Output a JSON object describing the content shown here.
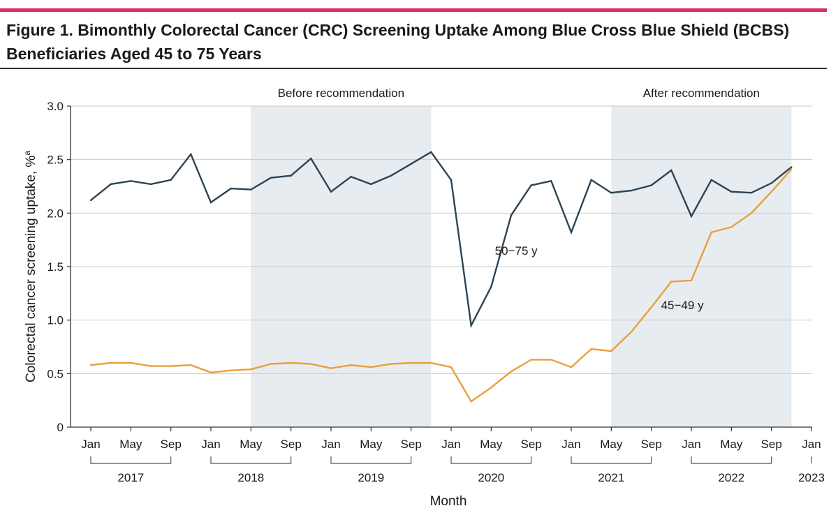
{
  "figure": {
    "title_line1": "Figure 1. Bimonthly Colorectal Cancer (CRC) Screening Uptake Among Blue Cross Blue Shield (BCBS)",
    "title_line2": "Beneficiaries Aged 45 to 75 Years"
  },
  "colors": {
    "accent": "#d6306b",
    "series_50_75": "#2e4453",
    "series_45_49": "#e8a03c",
    "shade": "#e7ecf1"
  },
  "chart_data": {
    "type": "line",
    "title": "Figure 1. Bimonthly Colorectal Cancer (CRC) Screening Uptake Among Blue Cross Blue Shield (BCBS) Beneficiaries Aged 45 to 75 Years",
    "xlabel": "Month",
    "ylabel": "Colorectal cancer screening uptake, %",
    "ylabel_superscript": "a",
    "ylim": [
      0,
      3.0
    ],
    "yticks": [
      "0",
      "0.5",
      "1.0",
      "1.5",
      "2.0",
      "2.5",
      "3.0"
    ],
    "xlim": [
      0,
      72
    ],
    "xticks": [
      {
        "t": 0,
        "label": "Jan"
      },
      {
        "t": 4,
        "label": "May"
      },
      {
        "t": 8,
        "label": "Sep"
      },
      {
        "t": 12,
        "label": "Jan"
      },
      {
        "t": 16,
        "label": "May"
      },
      {
        "t": 20,
        "label": "Sep"
      },
      {
        "t": 24,
        "label": "Jan"
      },
      {
        "t": 28,
        "label": "May"
      },
      {
        "t": 32,
        "label": "Sep"
      },
      {
        "t": 36,
        "label": "Jan"
      },
      {
        "t": 40,
        "label": "May"
      },
      {
        "t": 44,
        "label": "Sep"
      },
      {
        "t": 48,
        "label": "Jan"
      },
      {
        "t": 52,
        "label": "May"
      },
      {
        "t": 56,
        "label": "Sep"
      },
      {
        "t": 60,
        "label": "Jan"
      },
      {
        "t": 64,
        "label": "May"
      },
      {
        "t": 68,
        "label": "Sep"
      },
      {
        "t": 72,
        "label": "Jan"
      }
    ],
    "years": [
      {
        "label": "2017",
        "start": 0,
        "end": 8
      },
      {
        "label": "2018",
        "start": 12,
        "end": 20
      },
      {
        "label": "2019",
        "start": 24,
        "end": 32
      },
      {
        "label": "2020",
        "start": 36,
        "end": 44
      },
      {
        "label": "2021",
        "start": 48,
        "end": 56
      },
      {
        "label": "2022",
        "start": 60,
        "end": 68
      },
      {
        "label": "2023",
        "start": 72,
        "end": 72
      }
    ],
    "periods": [
      {
        "label": "Before recommendation",
        "start": 16,
        "end": 34
      },
      {
        "label": "After recommendation",
        "start": 52,
        "end": 70
      }
    ],
    "x": [
      0,
      2,
      4,
      6,
      8,
      10,
      12,
      14,
      16,
      18,
      20,
      22,
      24,
      26,
      28,
      30,
      32,
      34,
      36,
      38,
      40,
      42,
      44,
      46,
      48,
      50,
      52,
      54,
      56,
      58,
      60,
      62,
      64,
      66,
      68,
      70
    ],
    "series": [
      {
        "name": "50-75 y",
        "label": "50−75 y",
        "label_at": [
          42.5,
          1.65
        ],
        "values": [
          2.12,
          2.27,
          2.3,
          2.27,
          2.31,
          2.55,
          2.1,
          2.23,
          2.22,
          2.33,
          2.35,
          2.51,
          2.2,
          2.34,
          2.27,
          2.35,
          2.46,
          2.57,
          2.31,
          0.95,
          1.31,
          1.98,
          2.26,
          2.3,
          1.82,
          2.31,
          2.19,
          2.21,
          2.26,
          2.4,
          1.97,
          2.31,
          2.2,
          2.19,
          2.28,
          2.43
        ]
      },
      {
        "name": "45-49 y",
        "label": "45−49 y",
        "label_at": [
          59.1,
          1.14
        ],
        "values": [
          0.58,
          0.6,
          0.6,
          0.57,
          0.57,
          0.58,
          0.51,
          0.53,
          0.54,
          0.59,
          0.6,
          0.59,
          0.55,
          0.58,
          0.56,
          0.59,
          0.6,
          0.6,
          0.56,
          0.24,
          0.37,
          0.52,
          0.63,
          0.63,
          0.56,
          0.73,
          0.71,
          0.89,
          1.12,
          1.36,
          1.37,
          1.82,
          1.87,
          2.0,
          2.2,
          2.41
        ]
      }
    ]
  }
}
